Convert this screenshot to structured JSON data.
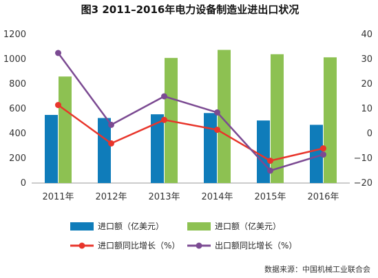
{
  "chart_data": {
    "title": "图3 2011–2016年电力设备制造业进出口状况",
    "type": "bar",
    "categories": [
      "2011年",
      "2012年",
      "2013年",
      "2014年",
      "2015年",
      "2016年"
    ],
    "left_axis": {
      "ylim": [
        0,
        1200
      ],
      "ticks": [
        "0",
        "200",
        "400",
        "600",
        "800",
        "1000",
        "1200"
      ]
    },
    "right_axis": {
      "ylim": [
        -20,
        40
      ],
      "ticks": [
        "−20",
        "−10",
        "0",
        "10",
        "20",
        "30",
        "40"
      ]
    },
    "series": [
      {
        "name": "进口额（亿美元）",
        "type": "bar",
        "axis": "left",
        "color": "#0f7cba",
        "values": [
          550,
          525,
          555,
          565,
          505,
          470
        ]
      },
      {
        "name": "进口额（亿美元）",
        "type": "bar",
        "axis": "left",
        "color": "#8dc152",
        "values": [
          860,
          null,
          1010,
          1075,
          1040,
          1015
        ]
      },
      {
        "name": "进口额同比增长（%）",
        "type": "line",
        "axis": "right",
        "color": "#e8352b",
        "values": [
          11.5,
          -4,
          5.5,
          1.5,
          -11,
          -6
        ]
      },
      {
        "name": "出口额同比增长（%）",
        "type": "line",
        "axis": "right",
        "color": "#7b4a92",
        "values": [
          32.5,
          3.5,
          15,
          8.5,
          -15,
          -8.5
        ]
      }
    ],
    "legend_position": "bottom",
    "grid": false
  },
  "source": "数据来源：中国机械工业联合会"
}
